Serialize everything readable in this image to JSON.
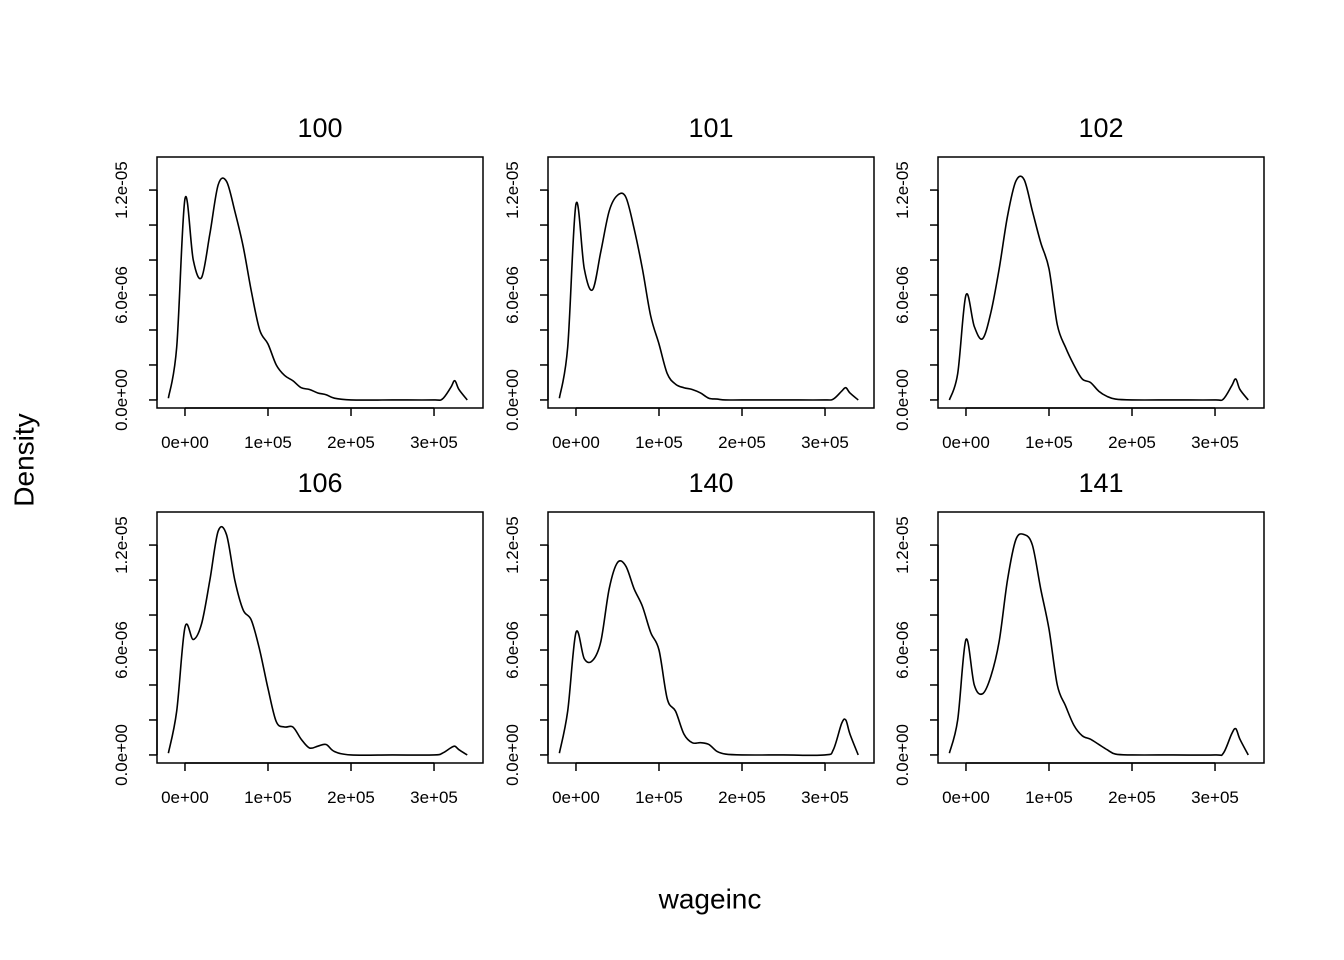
{
  "xlabel": "wageinc",
  "ylabel": "Density",
  "chart_data": [
    {
      "type": "line",
      "title": "100",
      "color": "#000000",
      "x": [
        -20000,
        -10000,
        0,
        10000,
        20000,
        30000,
        40000,
        50000,
        60000,
        70000,
        80000,
        90000,
        100000,
        110000,
        120000,
        130000,
        140000,
        150000,
        160000,
        170000,
        180000,
        200000,
        250000,
        300000,
        310000,
        320000,
        325000,
        330000,
        340000
      ],
      "values": [
        1e-07,
        3e-06,
        1.15e-05,
        8e-06,
        7e-06,
        9.5e-06,
        1.23e-05,
        1.25e-05,
        1.08e-05,
        8.8e-06,
        6.2e-06,
        4e-06,
        3.2e-06,
        2e-06,
        1.4e-06,
        1.1e-06,
        7e-07,
        6e-07,
        4e-07,
        3e-07,
        1e-07,
        0,
        0,
        0,
        5e-08,
        7e-07,
        1.1e-06,
        6e-07,
        0
      ],
      "xlim": [
        -33700,
        359000
      ],
      "ylim": [
        -4.6e-07,
        1.389e-05
      ],
      "xticks": [
        {
          "value": 0,
          "label": "0e+00"
        },
        {
          "value": 100000,
          "label": "1e+05"
        },
        {
          "value": 200000,
          "label": "2e+05"
        },
        {
          "value": 300000,
          "label": "3e+05"
        }
      ],
      "yticks": [
        {
          "value": 0,
          "label": "0.0e+00"
        },
        {
          "value": 6e-06,
          "label": "6.0e-06"
        },
        {
          "value": 1.2e-05,
          "label": "1.2e-05"
        }
      ],
      "yminor_ticks": [
        2e-06,
        4e-06,
        8e-06,
        1e-05
      ]
    },
    {
      "type": "line",
      "title": "101",
      "color": "#000000",
      "x": [
        -20000,
        -10000,
        0,
        10000,
        20000,
        30000,
        40000,
        50000,
        60000,
        70000,
        80000,
        90000,
        100000,
        110000,
        120000,
        130000,
        140000,
        150000,
        160000,
        170000,
        180000,
        200000,
        250000,
        300000,
        310000,
        320000,
        325000,
        330000,
        340000
      ],
      "values": [
        1e-07,
        3e-06,
        1.12e-05,
        7.5e-06,
        6.3e-06,
        8.5e-06,
        1.08e-05,
        1.17e-05,
        1.16e-05,
        9.8e-06,
        7.5e-06,
        4.8e-06,
        3.2e-06,
        1.5e-06,
        9e-07,
        7e-07,
        6e-07,
        4e-07,
        1e-07,
        5e-08,
        0,
        0,
        0,
        0,
        5e-08,
        5e-07,
        7e-07,
        4e-07,
        0
      ],
      "xlim": [
        -33700,
        359000
      ],
      "ylim": [
        -4.6e-07,
        1.389e-05
      ],
      "xticks": [
        {
          "value": 0,
          "label": "0e+00"
        },
        {
          "value": 100000,
          "label": "1e+05"
        },
        {
          "value": 200000,
          "label": "2e+05"
        },
        {
          "value": 300000,
          "label": "3e+05"
        }
      ],
      "yticks": [
        {
          "value": 0,
          "label": "0.0e+00"
        },
        {
          "value": 6e-06,
          "label": "6.0e-06"
        },
        {
          "value": 1.2e-05,
          "label": "1.2e-05"
        }
      ],
      "yminor_ticks": [
        2e-06,
        4e-06,
        8e-06,
        1e-05
      ]
    },
    {
      "type": "line",
      "title": "102",
      "color": "#000000",
      "x": [
        -20000,
        -10000,
        0,
        10000,
        20000,
        30000,
        40000,
        50000,
        60000,
        70000,
        80000,
        90000,
        100000,
        110000,
        120000,
        130000,
        140000,
        150000,
        160000,
        170000,
        180000,
        200000,
        250000,
        300000,
        310000,
        320000,
        325000,
        330000,
        340000
      ],
      "values": [
        0,
        1.5e-06,
        6e-06,
        4.2e-06,
        3.5e-06,
        5e-06,
        7.5e-06,
        1.05e-05,
        1.25e-05,
        1.26e-05,
        1.08e-05,
        9e-06,
        7.5e-06,
        4.3e-06,
        3e-06,
        2e-06,
        1.2e-06,
        1e-06,
        5e-07,
        2e-07,
        5e-08,
        0,
        0,
        0,
        5e-08,
        8e-07,
        1.2e-06,
        6e-07,
        0
      ],
      "xlim": [
        -33700,
        359000
      ],
      "ylim": [
        -4.6e-07,
        1.389e-05
      ],
      "xticks": [
        {
          "value": 0,
          "label": "0e+00"
        },
        {
          "value": 100000,
          "label": "1e+05"
        },
        {
          "value": 200000,
          "label": "2e+05"
        },
        {
          "value": 300000,
          "label": "3e+05"
        }
      ],
      "yticks": [
        {
          "value": 0,
          "label": "0.0e+00"
        },
        {
          "value": 6e-06,
          "label": "6.0e-06"
        },
        {
          "value": 1.2e-05,
          "label": "1.2e-05"
        }
      ],
      "yminor_ticks": [
        2e-06,
        4e-06,
        8e-06,
        1e-05
      ]
    },
    {
      "type": "line",
      "title": "106",
      "color": "#000000",
      "x": [
        -20000,
        -10000,
        0,
        10000,
        20000,
        30000,
        40000,
        50000,
        60000,
        70000,
        80000,
        90000,
        100000,
        110000,
        120000,
        130000,
        140000,
        150000,
        160000,
        170000,
        180000,
        200000,
        250000,
        300000,
        310000,
        320000,
        325000,
        330000,
        340000
      ],
      "values": [
        1e-07,
        2.5e-06,
        7.3e-06,
        6.6e-06,
        7.5e-06,
        1e-05,
        1.28e-05,
        1.26e-05,
        1e-05,
        8.3e-06,
        7.7e-06,
        6e-06,
        3.8e-06,
        1.9e-06,
        1.6e-06,
        1.6e-06,
        9e-07,
        4e-07,
        5e-07,
        6e-07,
        2e-07,
        0,
        0,
        0,
        1e-07,
        4e-07,
        5e-07,
        3e-07,
        0
      ],
      "xlim": [
        -33700,
        359000
      ],
      "ylim": [
        -4.6e-07,
        1.389e-05
      ],
      "xticks": [
        {
          "value": 0,
          "label": "0e+00"
        },
        {
          "value": 100000,
          "label": "1e+05"
        },
        {
          "value": 200000,
          "label": "2e+05"
        },
        {
          "value": 300000,
          "label": "3e+05"
        }
      ],
      "yticks": [
        {
          "value": 0,
          "label": "0.0e+00"
        },
        {
          "value": 6e-06,
          "label": "6.0e-06"
        },
        {
          "value": 1.2e-05,
          "label": "1.2e-05"
        }
      ],
      "yminor_ticks": [
        2e-06,
        4e-06,
        8e-06,
        1e-05
      ]
    },
    {
      "type": "line",
      "title": "140",
      "color": "#000000",
      "x": [
        -20000,
        -10000,
        0,
        10000,
        20000,
        30000,
        40000,
        50000,
        60000,
        70000,
        80000,
        90000,
        100000,
        110000,
        120000,
        130000,
        140000,
        150000,
        160000,
        170000,
        180000,
        200000,
        250000,
        300000,
        310000,
        320000,
        325000,
        330000,
        340000
      ],
      "values": [
        1e-07,
        2.5e-06,
        7e-06,
        5.5e-06,
        5.4e-06,
        6.5e-06,
        9.5e-06,
        1.1e-05,
        1.08e-05,
        9.5e-06,
        8.5e-06,
        7e-06,
        6e-06,
        3.2e-06,
        2.5e-06,
        1.2e-06,
        7e-07,
        7e-07,
        6e-07,
        2e-07,
        5e-08,
        0,
        0,
        0,
        3e-07,
        1.8e-06,
        2e-06,
        1.2e-06,
        0
      ],
      "xlim": [
        -33700,
        359000
      ],
      "ylim": [
        -4.6e-07,
        1.389e-05
      ],
      "xticks": [
        {
          "value": 0,
          "label": "0e+00"
        },
        {
          "value": 100000,
          "label": "1e+05"
        },
        {
          "value": 200000,
          "label": "2e+05"
        },
        {
          "value": 300000,
          "label": "3e+05"
        }
      ],
      "yticks": [
        {
          "value": 0,
          "label": "0.0e+00"
        },
        {
          "value": 6e-06,
          "label": "6.0e-06"
        },
        {
          "value": 1.2e-05,
          "label": "1.2e-05"
        }
      ],
      "yminor_ticks": [
        2e-06,
        4e-06,
        8e-06,
        1e-05
      ]
    },
    {
      "type": "line",
      "title": "141",
      "color": "#000000",
      "x": [
        -20000,
        -10000,
        0,
        10000,
        20000,
        30000,
        40000,
        50000,
        60000,
        70000,
        80000,
        90000,
        100000,
        110000,
        120000,
        130000,
        140000,
        150000,
        160000,
        170000,
        180000,
        200000,
        250000,
        300000,
        310000,
        320000,
        325000,
        330000,
        340000
      ],
      "values": [
        1e-07,
        2e-06,
        6.6e-06,
        4e-06,
        3.5e-06,
        4.5e-06,
        6.5e-06,
        1e-05,
        1.23e-05,
        1.26e-05,
        1.2e-05,
        9.5e-06,
        7.2e-06,
        4e-06,
        2.8e-06,
        1.7e-06,
        1.1e-06,
        9e-07,
        6e-07,
        3e-07,
        5e-08,
        0,
        0,
        0,
        1e-07,
        1.2e-06,
        1.5e-06,
        9e-07,
        0
      ],
      "xlim": [
        -33700,
        359000
      ],
      "ylim": [
        -4.6e-07,
        1.389e-05
      ],
      "xticks": [
        {
          "value": 0,
          "label": "0e+00"
        },
        {
          "value": 100000,
          "label": "1e+05"
        },
        {
          "value": 200000,
          "label": "2e+05"
        },
        {
          "value": 300000,
          "label": "3e+05"
        }
      ],
      "yticks": [
        {
          "value": 0,
          "label": "0.0e+00"
        },
        {
          "value": 6e-06,
          "label": "6.0e-06"
        },
        {
          "value": 1.2e-05,
          "label": "1.2e-05"
        }
      ],
      "yminor_ticks": [
        2e-06,
        4e-06,
        8e-06,
        1e-05
      ]
    }
  ]
}
